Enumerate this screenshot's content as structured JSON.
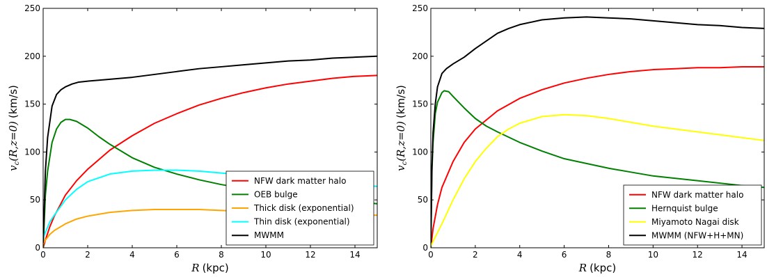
{
  "chart_data": [
    {
      "type": "line",
      "xlabel_sym": "R",
      "xlabel_unit": "(kpc)",
      "ylabel_sym": "v",
      "ylabel_sub": "c",
      "ylabel_arg": "(R,z=0)",
      "ylabel_unit": "(km/s)",
      "xlim": [
        0,
        15
      ],
      "ylim": [
        0,
        250
      ],
      "xticks": [
        0,
        2,
        4,
        6,
        8,
        10,
        12,
        14
      ],
      "yticks": [
        0,
        50,
        100,
        150,
        200,
        250
      ],
      "grid": false,
      "legend_position": "lower-right",
      "series": [
        {
          "name": "NFW dark matter halo",
          "color": "#ff0000",
          "x": [
            0,
            0.1,
            0.3,
            0.5,
            1,
            1.5,
            2,
            3,
            4,
            5,
            6,
            7,
            8,
            9,
            10,
            11,
            12,
            13,
            14,
            15
          ],
          "y": [
            0,
            8,
            22,
            33,
            55,
            70,
            82,
            102,
            117,
            130,
            140,
            149,
            156,
            162,
            167,
            171,
            174,
            177,
            179,
            180
          ]
        },
        {
          "name": "OEB bulge",
          "color": "#008000",
          "x": [
            0,
            0.1,
            0.2,
            0.4,
            0.6,
            0.8,
            1,
            1.2,
            1.5,
            2,
            2.5,
            3,
            4,
            5,
            6,
            7,
            8,
            9,
            10,
            12,
            14,
            15
          ],
          "y": [
            0,
            55,
            80,
            110,
            124,
            131,
            134,
            134,
            132,
            125,
            116,
            108,
            94,
            84,
            77,
            71,
            66,
            62,
            58,
            53,
            48,
            46
          ]
        },
        {
          "name": "Thick disk (exponential)",
          "color": "#ffa500",
          "x": [
            0,
            0.1,
            0.3,
            0.5,
            1,
            1.5,
            2,
            3,
            4,
            5,
            6,
            7,
            8,
            9,
            10,
            11,
            12,
            13,
            14,
            15
          ],
          "y": [
            4,
            8,
            14,
            18,
            25,
            30,
            33,
            37,
            39,
            40,
            40,
            40,
            39,
            38,
            37,
            36,
            36,
            35,
            34,
            34
          ]
        },
        {
          "name": "Thin disk (exponential)",
          "color": "#00ffff",
          "x": [
            0,
            0.1,
            0.3,
            0.5,
            1,
            1.5,
            2,
            3,
            4,
            5,
            6,
            7,
            8,
            9,
            10,
            11,
            12,
            13,
            14,
            15
          ],
          "y": [
            10,
            16,
            27,
            34,
            50,
            61,
            69,
            77,
            80,
            81,
            81,
            80,
            78,
            76,
            74,
            72,
            70,
            68,
            66,
            64
          ]
        },
        {
          "name": "MWMM",
          "color": "#000000",
          "x": [
            0,
            0.1,
            0.2,
            0.4,
            0.6,
            0.8,
            1,
            1.3,
            1.6,
            2,
            2.5,
            3,
            3.5,
            4,
            5,
            6,
            7,
            8,
            9,
            10,
            11,
            12,
            13,
            14,
            15
          ],
          "y": [
            5,
            80,
            115,
            148,
            160,
            165,
            168,
            171,
            173,
            174,
            175,
            176,
            177,
            178,
            181,
            184,
            187,
            189,
            191,
            193,
            195,
            196,
            198,
            199,
            200
          ]
        }
      ]
    },
    {
      "type": "line",
      "xlabel_sym": "R",
      "xlabel_unit": "(kpc)",
      "ylabel_sym": "v",
      "ylabel_sub": "c",
      "ylabel_arg": "(R,z=0)",
      "ylabel_unit": "(km/s)",
      "xlim": [
        0,
        15
      ],
      "ylim": [
        0,
        250
      ],
      "xticks": [
        0,
        2,
        4,
        6,
        8,
        10,
        12,
        14
      ],
      "yticks": [
        0,
        50,
        100,
        150,
        200,
        250
      ],
      "grid": false,
      "legend_position": "lower-right",
      "series": [
        {
          "name": "NFW dark matter halo",
          "color": "#ff0000",
          "x": [
            0,
            0.1,
            0.3,
            0.5,
            1,
            1.5,
            2,
            3,
            4,
            5,
            6,
            7,
            8,
            9,
            10,
            11,
            12,
            13,
            14,
            15
          ],
          "y": [
            0,
            20,
            45,
            63,
            90,
            110,
            124,
            143,
            156,
            165,
            172,
            177,
            181,
            184,
            186,
            187,
            188,
            188,
            189,
            189
          ]
        },
        {
          "name": "Hernquist bulge",
          "color": "#008000",
          "x": [
            0,
            0.05,
            0.1,
            0.2,
            0.3,
            0.5,
            0.6,
            0.8,
            1,
            1.5,
            2,
            2.5,
            3,
            4,
            5,
            6,
            7,
            8,
            9,
            10,
            12,
            14,
            15
          ],
          "y": [
            0,
            80,
            110,
            140,
            152,
            162,
            164,
            163,
            158,
            146,
            135,
            127,
            121,
            110,
            101,
            93,
            88,
            83,
            79,
            75,
            70,
            65,
            63
          ]
        },
        {
          "name": "Miyamoto Nagai disk",
          "color": "#ffff00",
          "x": [
            0,
            0.5,
            1,
            1.5,
            2,
            2.5,
            3,
            3.5,
            4,
            5,
            6,
            7,
            8,
            9,
            10,
            11,
            12,
            13,
            14,
            15
          ],
          "y": [
            2,
            25,
            50,
            72,
            90,
            104,
            116,
            124,
            130,
            137,
            139,
            138,
            135,
            131,
            127,
            124,
            121,
            118,
            115,
            112
          ]
        },
        {
          "name": "MWMM (NFW+H+MN)",
          "color": "#000000",
          "x": [
            0,
            0.05,
            0.1,
            0.2,
            0.3,
            0.5,
            0.7,
            1,
            1.5,
            2,
            2.5,
            3,
            3.5,
            4,
            5,
            6,
            7,
            8,
            9,
            10,
            11,
            12,
            13,
            14,
            15
          ],
          "y": [
            5,
            85,
            120,
            150,
            168,
            182,
            187,
            192,
            199,
            208,
            216,
            224,
            229,
            233,
            238,
            240,
            241,
            240,
            239,
            237,
            235,
            233,
            232,
            230,
            229
          ]
        }
      ]
    }
  ]
}
